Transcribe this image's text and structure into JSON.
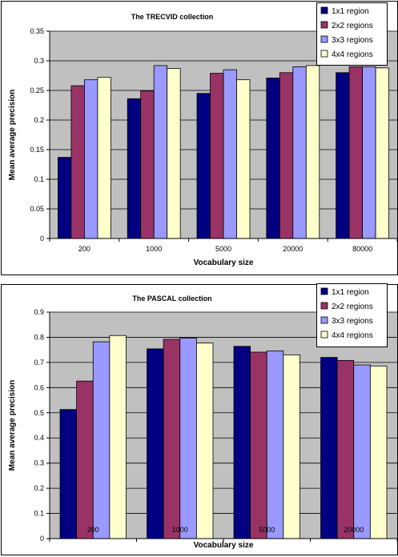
{
  "chart_data": [
    {
      "type": "bar",
      "title": "The TRECVID collection",
      "xlabel": "Vocabulary size",
      "ylabel": "Mean average precision",
      "categories": [
        "200",
        "1000",
        "5000",
        "20000",
        "80000"
      ],
      "ylim": [
        0,
        0.35
      ],
      "yticks": [
        "0",
        "0.05",
        "0.1",
        "0.15",
        "0.2",
        "0.25",
        "0.3",
        "0.35"
      ],
      "grid": true,
      "legend_position": "top-right",
      "series": [
        {
          "name": "1x1 region",
          "color": "#000080",
          "values": [
            0.137,
            0.236,
            0.245,
            0.271,
            0.28
          ]
        },
        {
          "name": "2x2 regions",
          "color": "#993366",
          "values": [
            0.258,
            0.249,
            0.279,
            0.28,
            0.29
          ]
        },
        {
          "name": "3x3 regions",
          "color": "#9999ff",
          "values": [
            0.268,
            0.292,
            0.285,
            0.29,
            0.29
          ]
        },
        {
          "name": "4x4 regions",
          "color": "#ffffcc",
          "values": [
            0.272,
            0.287,
            0.268,
            0.292,
            0.288
          ]
        }
      ]
    },
    {
      "type": "bar",
      "title": "The PASCAL collection",
      "xlabel": "Vocabulary size",
      "ylabel": "Mean average precision",
      "categories": [
        "200",
        "1000",
        "5000",
        "20000"
      ],
      "ylim": [
        0,
        0.9
      ],
      "yticks": [
        "0",
        "0.1",
        "0.2",
        "0.3",
        "0.4",
        "0.5",
        "0.6",
        "0.7",
        "0.8",
        "0.9"
      ],
      "grid": true,
      "legend_position": "top-right",
      "series": [
        {
          "name": "1x1 region",
          "color": "#000080",
          "values": [
            0.513,
            0.754,
            0.764,
            0.72
          ]
        },
        {
          "name": "2x2 regions",
          "color": "#993366",
          "values": [
            0.626,
            0.792,
            0.741,
            0.708
          ]
        },
        {
          "name": "3x3 regions",
          "color": "#9999ff",
          "values": [
            0.782,
            0.797,
            0.746,
            0.69
          ]
        },
        {
          "name": "4x4 regions",
          "color": "#ffffcc",
          "values": [
            0.807,
            0.777,
            0.73,
            0.686
          ]
        }
      ]
    }
  ]
}
